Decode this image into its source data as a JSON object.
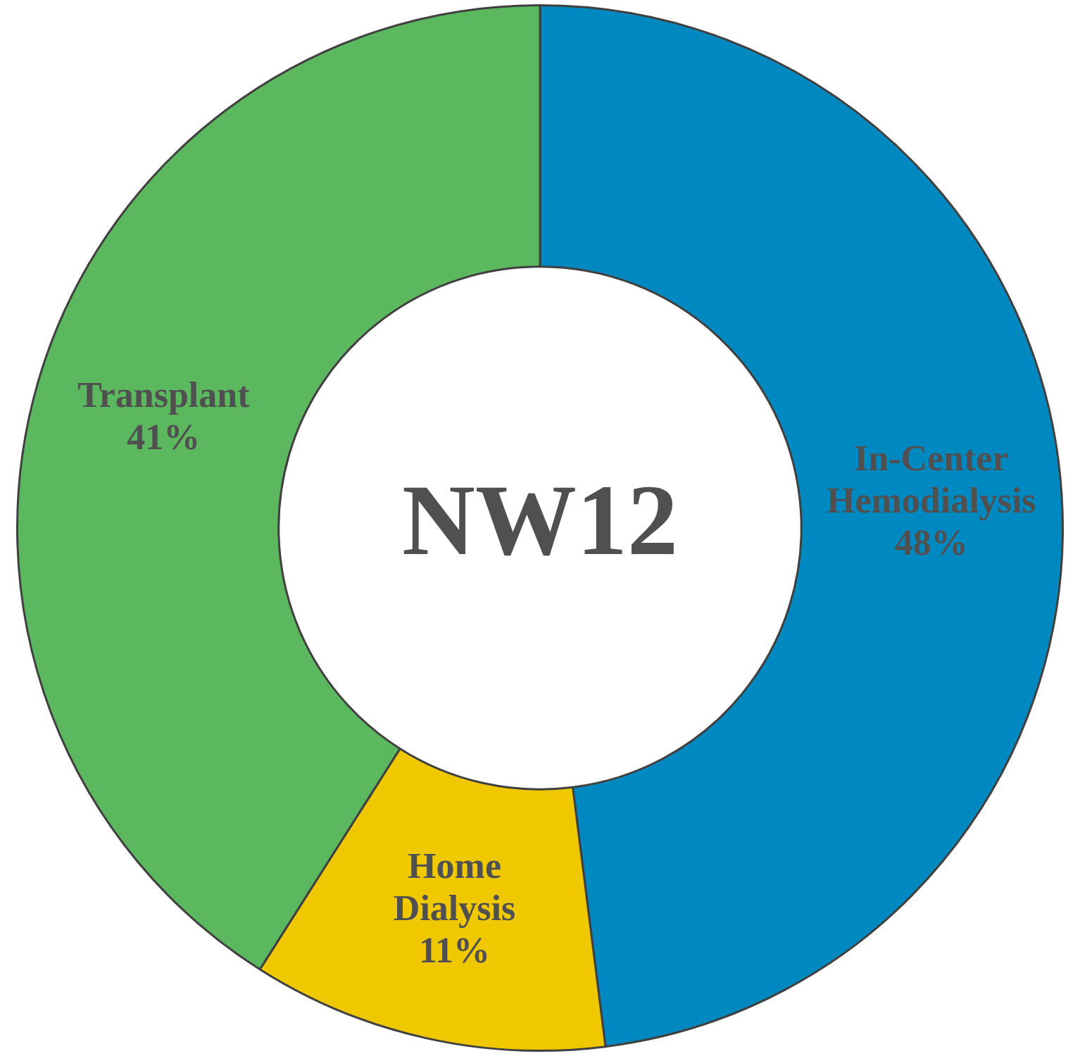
{
  "chart_data": {
    "type": "donut",
    "title": "NW12",
    "categories": [
      "In-Center Hemodialysis",
      "Home Dialysis",
      "Transplant"
    ],
    "values": [
      48,
      11,
      41
    ],
    "colors": [
      "#0089c0",
      "#f0c800",
      "#5cb85f"
    ],
    "value_labels": [
      "48%",
      "11%",
      "41%"
    ],
    "legend": false
  }
}
